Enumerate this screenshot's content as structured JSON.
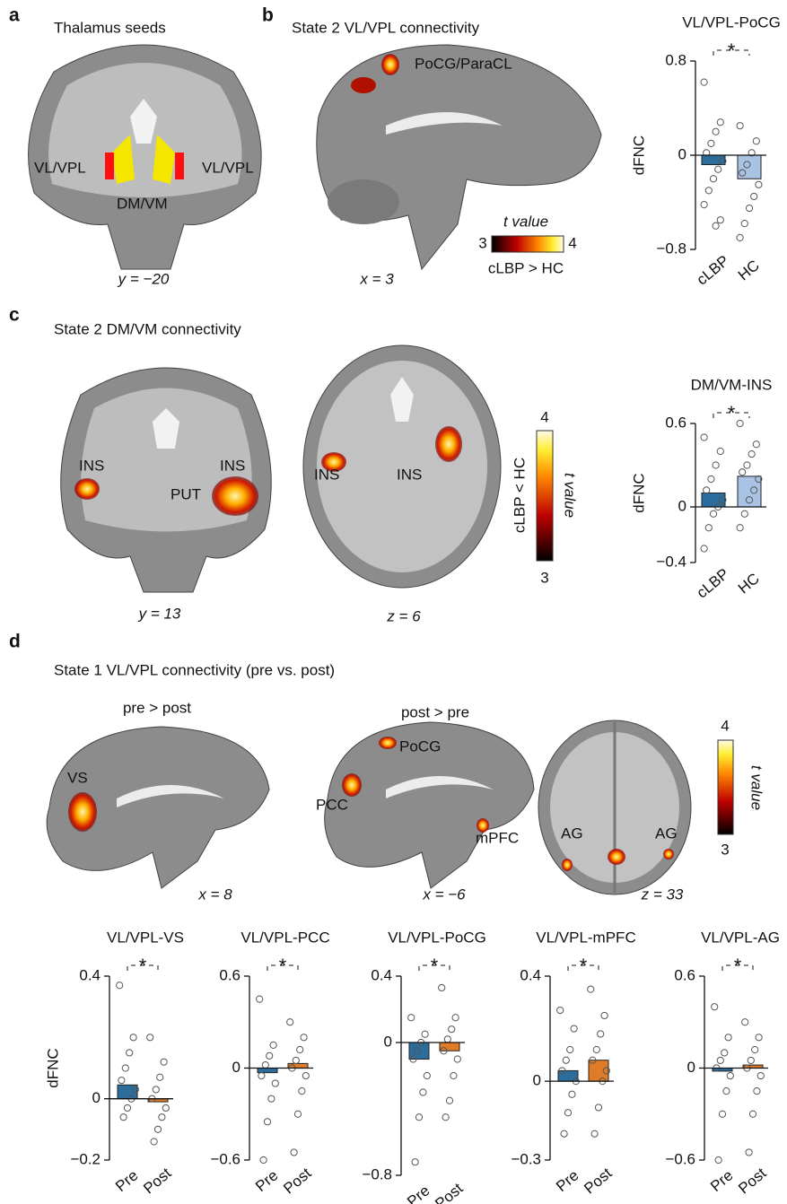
{
  "panels": {
    "a": {
      "letter": "a",
      "title": "Thalamus seeds",
      "labels": [
        "VL/VPL",
        "VL/VPL",
        "DM/VM"
      ],
      "coord": "y = −20"
    },
    "b": {
      "letter": "b",
      "title": "State 2 VL/VPL connectivity",
      "labels": [
        "PoCG/ParaCL"
      ],
      "coord": "x = 3",
      "colorbar": {
        "ticks": [
          3,
          4
        ],
        "label": "t value",
        "contrast": "cLBP > HC"
      }
    },
    "c": {
      "letter": "c",
      "title": "State 2 DM/VM connectivity",
      "labels": [
        "INS",
        "INS",
        "PUT",
        "INS",
        "INS"
      ],
      "coords": [
        "y = 13",
        "z = 6"
      ],
      "colorbar": {
        "ticks": [
          4,
          3
        ],
        "label": "t value",
        "contrast": "cLBP < HC"
      }
    },
    "d": {
      "letter": "d",
      "title": "State 1 VL/VPL connectivity (pre vs. post)",
      "subtitles": [
        "pre > post",
        "post > pre"
      ],
      "labels": [
        "VS",
        "PoCG",
        "PCC",
        "mPFC",
        "AG",
        "AG"
      ],
      "coords": [
        "x = 8",
        "x = −6",
        "z = 33"
      ],
      "colorbar": {
        "ticks": [
          4,
          3
        ],
        "label": "t value"
      }
    }
  },
  "chart_data": [
    {
      "type": "bar",
      "title": "VL/VPL-PoCG",
      "ylabel": "dFNC",
      "significance": "*",
      "categories": [
        "cLBP",
        "HC"
      ],
      "values": [
        -0.08,
        -0.2
      ],
      "colors": [
        "#2b6e9e",
        "#a9c3e5"
      ],
      "points": [
        [
          0.62,
          0.28,
          0.2,
          0.1,
          0.02,
          -0.05,
          -0.12,
          -0.2,
          -0.3,
          -0.42,
          -0.55,
          -0.6
        ],
        [
          0.25,
          0.12,
          0.02,
          -0.08,
          -0.15,
          -0.25,
          -0.35,
          -0.45,
          -0.58,
          -0.7
        ]
      ],
      "ylim": [
        -0.8,
        0.8
      ],
      "yticks": [
        0.8,
        0,
        {
          "value": -0.8,
          "label": "−0.8"
        }
      ]
    },
    {
      "type": "bar",
      "title": "DM/VM-INS",
      "ylabel": "dFNC",
      "significance": "*",
      "categories": [
        "cLBP",
        "HC"
      ],
      "values": [
        0.1,
        0.22
      ],
      "colors": [
        "#2b6e9e",
        "#a9c3e5"
      ],
      "points": [
        [
          0.5,
          0.4,
          0.3,
          0.2,
          0.12,
          0.05,
          0,
          -0.05,
          -0.15,
          -0.3
        ],
        [
          0.6,
          0.45,
          0.38,
          0.3,
          0.25,
          0.2,
          0.12,
          0.05,
          -0.05,
          -0.15
        ]
      ],
      "ylim": [
        -0.4,
        0.6
      ],
      "yticks": [
        0.6,
        0,
        {
          "value": -0.4,
          "label": "−0.4"
        }
      ]
    },
    {
      "type": "bar",
      "title": "VL/VPL-VS",
      "ylabel": "dFNC",
      "significance": "*",
      "categories": [
        "Pre",
        "Post"
      ],
      "values": [
        0.045,
        -0.01
      ],
      "colors": [
        "#2b6e9e",
        "#e07b28"
      ],
      "points": [
        [
          0.37,
          0.2,
          0.15,
          0.1,
          0.06,
          0.03,
          0,
          -0.03,
          -0.06
        ],
        [
          0.2,
          0.12,
          0.07,
          0.03,
          0,
          -0.03,
          -0.06,
          -0.1,
          -0.14
        ]
      ],
      "ylim": [
        -0.2,
        0.4
      ],
      "yticks": [
        0.4,
        0,
        {
          "value": -0.2,
          "label": "−0.2"
        }
      ]
    },
    {
      "type": "bar",
      "title": "VL/VPL-PCC",
      "significance": "*",
      "categories": [
        "Pre",
        "Post"
      ],
      "values": [
        -0.03,
        0.03
      ],
      "colors": [
        "#2b6e9e",
        "#e07b28"
      ],
      "points": [
        [
          0.45,
          0.15,
          0.08,
          0.02,
          -0.05,
          -0.1,
          -0.2,
          -0.35,
          -0.6
        ],
        [
          0.3,
          0.2,
          0.12,
          0.05,
          0,
          -0.05,
          -0.15,
          -0.3,
          -0.55
        ]
      ],
      "ylim": [
        -0.6,
        0.6
      ],
      "yticks": [
        0.6,
        0,
        {
          "value": -0.6,
          "label": "−0.6"
        }
      ]
    },
    {
      "type": "bar",
      "title": "VL/VPL-PoCG",
      "significance": "*",
      "categories": [
        "Pre",
        "Post"
      ],
      "values": [
        -0.1,
        -0.05
      ],
      "colors": [
        "#2b6e9e",
        "#e07b28"
      ],
      "points": [
        [
          0.15,
          0.05,
          0,
          -0.05,
          -0.1,
          -0.2,
          -0.3,
          -0.45,
          -0.72
        ],
        [
          0.33,
          0.15,
          0.08,
          0.02,
          -0.05,
          -0.1,
          -0.2,
          -0.35,
          -0.45
        ]
      ],
      "ylim": [
        -0.8,
        0.4
      ],
      "yticks": [
        0.4,
        0,
        {
          "value": -0.8,
          "label": "−0.8"
        }
      ]
    },
    {
      "type": "bar",
      "title": "VL/VPL-mPFC",
      "significance": "*",
      "categories": [
        "Pre",
        "Post"
      ],
      "values": [
        0.04,
        0.08
      ],
      "colors": [
        "#2b6e9e",
        "#e07b28"
      ],
      "points": [
        [
          0.27,
          0.2,
          0.12,
          0.08,
          0.04,
          0,
          -0.05,
          -0.12,
          -0.2
        ],
        [
          0.35,
          0.25,
          0.18,
          0.12,
          0.08,
          0.04,
          0,
          -0.1,
          -0.2
        ]
      ],
      "ylim": [
        -0.3,
        0.4
      ],
      "yticks": [
        0.4,
        0,
        {
          "value": -0.3,
          "label": "−0.3"
        }
      ]
    },
    {
      "type": "bar",
      "title": "VL/VPL-AG",
      "significance": "*",
      "categories": [
        "Pre",
        "Post"
      ],
      "values": [
        -0.02,
        0.02
      ],
      "colors": [
        "#2b6e9e",
        "#e07b28"
      ],
      "points": [
        [
          0.4,
          0.2,
          0.1,
          0.05,
          0,
          -0.05,
          -0.15,
          -0.3,
          -0.6
        ],
        [
          0.3,
          0.2,
          0.12,
          0.05,
          0,
          -0.05,
          -0.15,
          -0.3,
          -0.55
        ]
      ],
      "ylim": [
        -0.6,
        0.6
      ],
      "yticks": [
        0.6,
        0,
        {
          "value": -0.6,
          "label": "−0.6"
        }
      ]
    }
  ]
}
